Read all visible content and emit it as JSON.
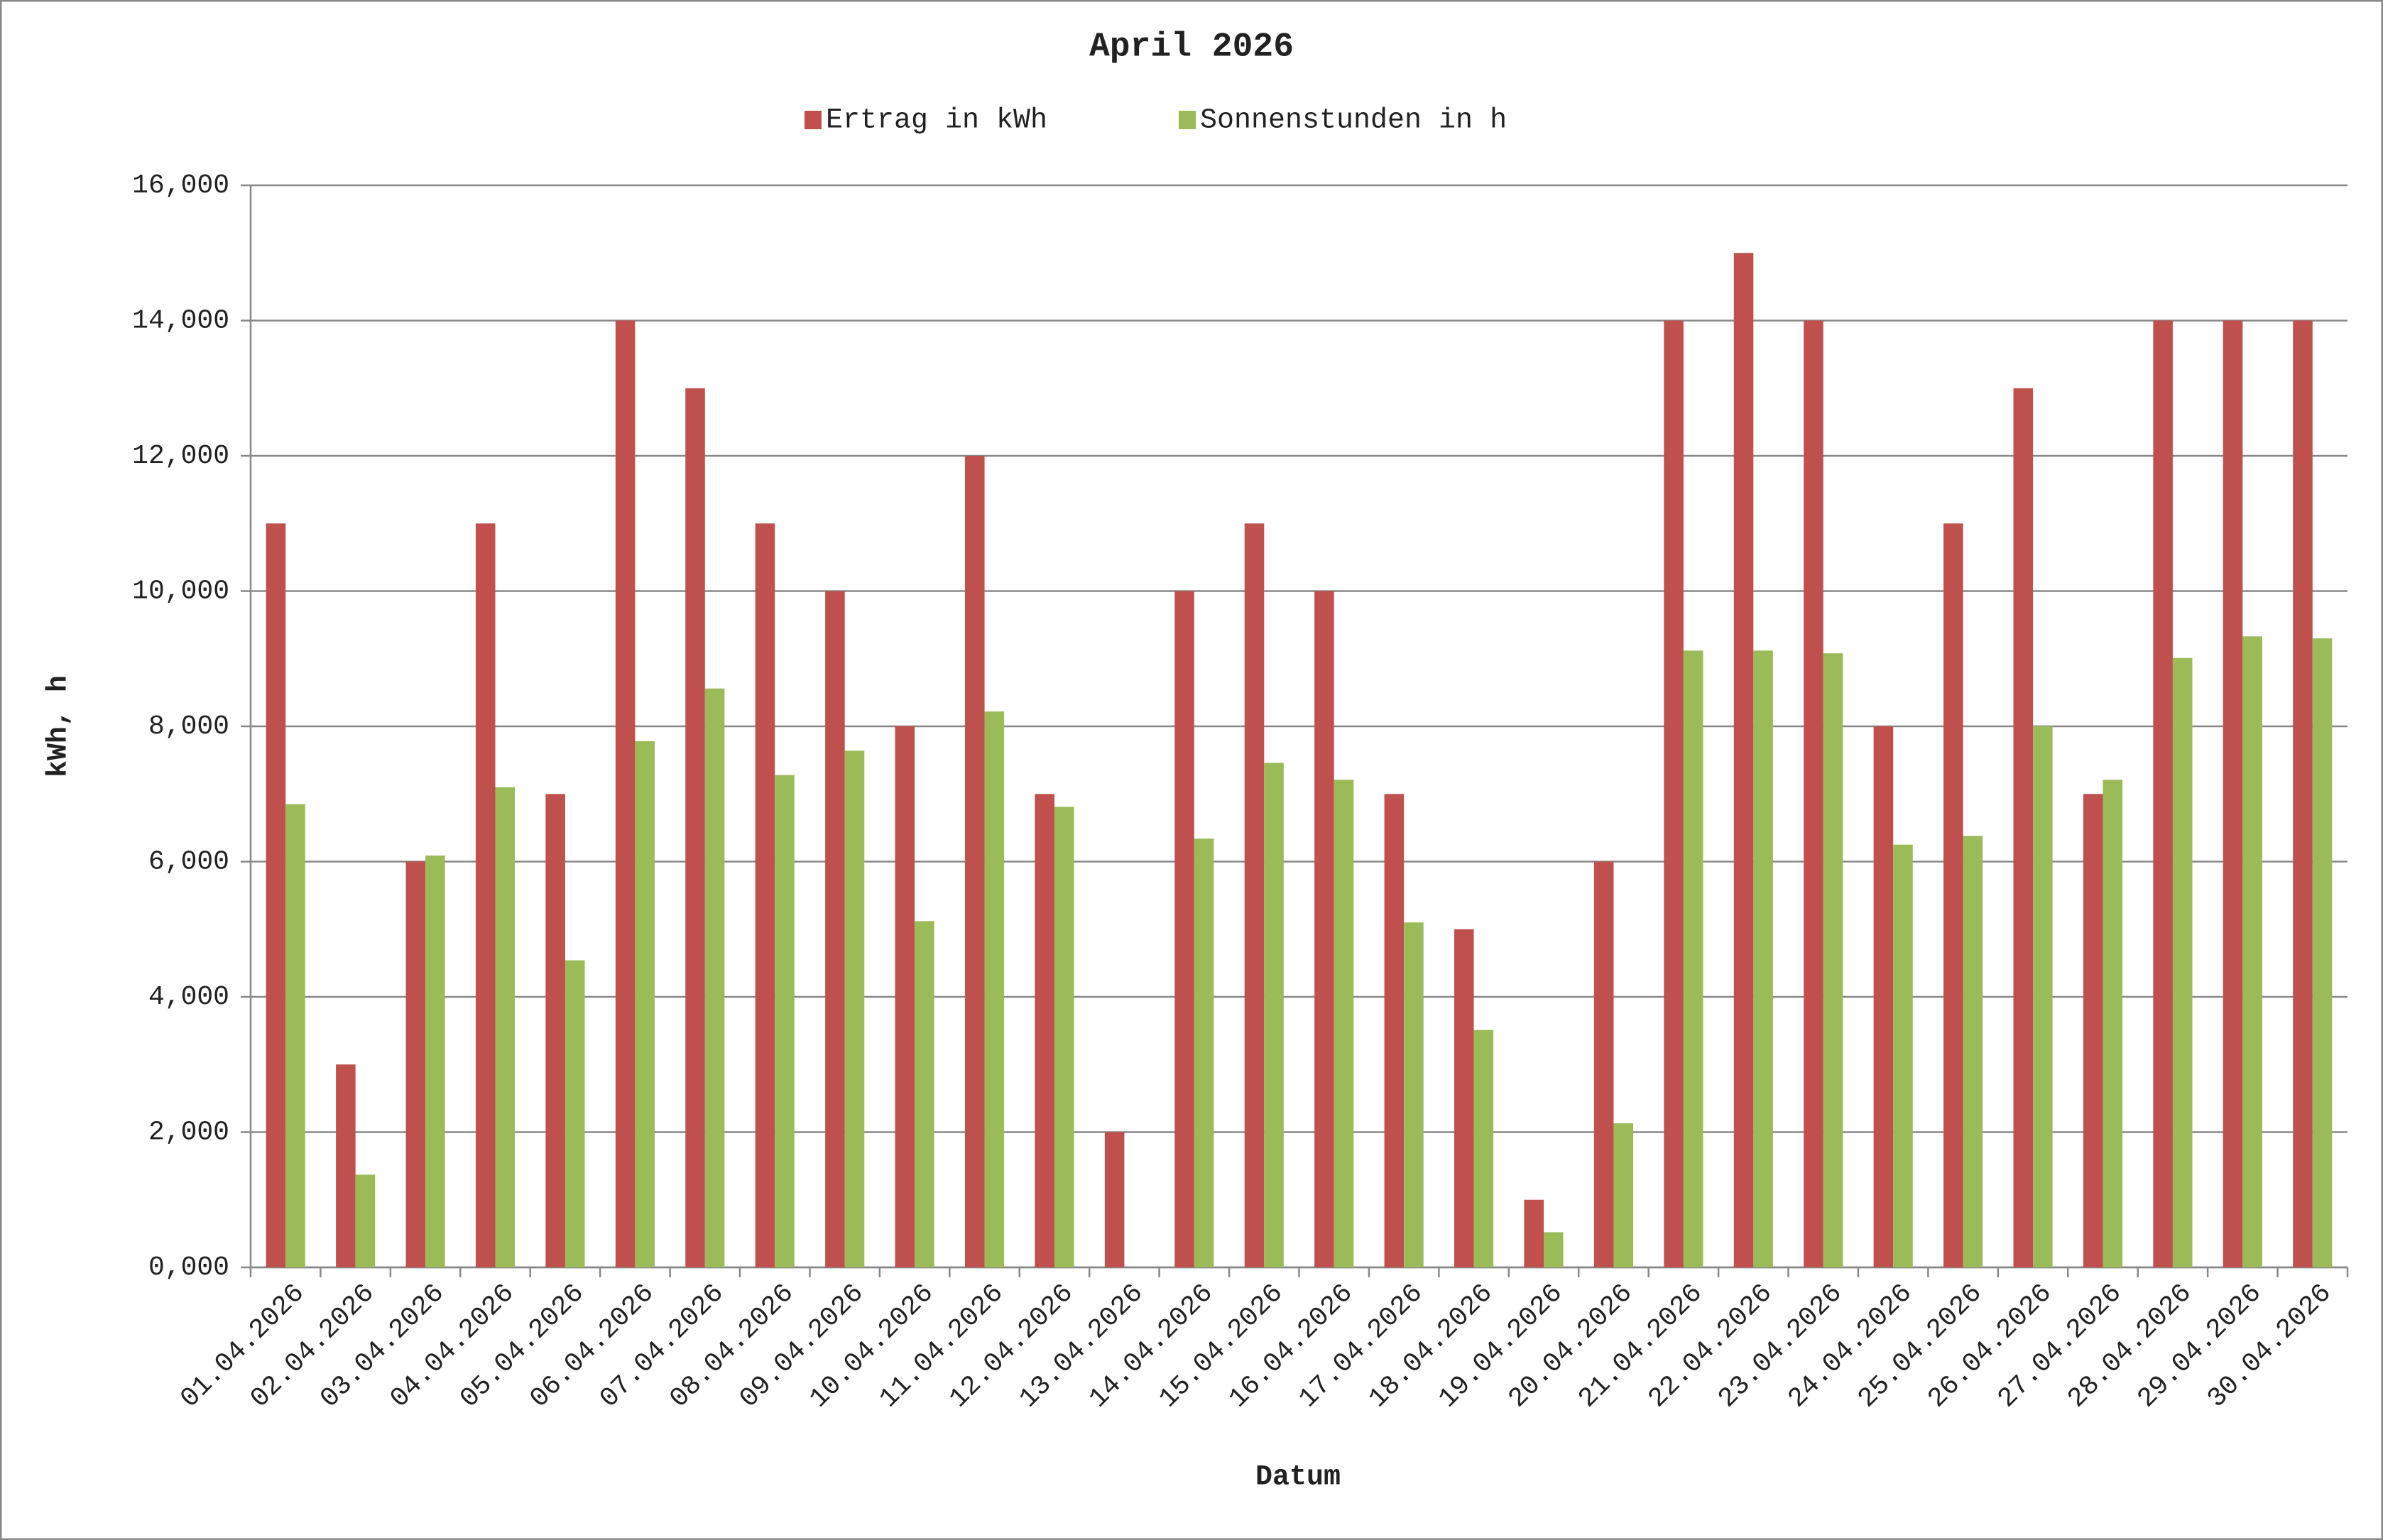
{
  "chart_data": {
    "type": "bar",
    "title": "April 2026",
    "x_label": "Datum",
    "y_label": "kWh, h",
    "categories": [
      "01.04.2026",
      "02.04.2026",
      "03.04.2026",
      "04.04.2026",
      "05.04.2026",
      "06.04.2026",
      "07.04.2026",
      "08.04.2026",
      "09.04.2026",
      "10.04.2026",
      "11.04.2026",
      "12.04.2026",
      "13.04.2026",
      "14.04.2026",
      "15.04.2026",
      "16.04.2026",
      "17.04.2026",
      "18.04.2026",
      "19.04.2026",
      "20.04.2026",
      "21.04.2026",
      "22.04.2026",
      "23.04.2026",
      "24.04.2026",
      "25.04.2026",
      "26.04.2026",
      "27.04.2026",
      "28.04.2026",
      "29.04.2026",
      "30.04.2026"
    ],
    "series": [
      {
        "name": "Ertrag in kWh",
        "color": "#c0504d",
        "values": [
          11,
          3,
          6,
          11,
          7,
          14,
          13,
          11,
          10,
          8,
          12,
          7,
          2,
          10,
          11,
          10,
          7,
          5,
          1,
          6,
          14,
          15,
          14,
          8,
          11,
          13,
          7,
          14,
          14,
          14
        ]
      },
      {
        "name": "Sonnenstunden in h",
        "color": "#9bbb59",
        "values": [
          6.85,
          1.37,
          6.09,
          7.1,
          4.54,
          7.78,
          8.56,
          7.28,
          7.64,
          5.12,
          8.22,
          6.81,
          0,
          6.34,
          7.46,
          7.21,
          5.1,
          3.51,
          0.52,
          2.13,
          9.12,
          9.12,
          9.08,
          6.25,
          6.38,
          8.0,
          7.21,
          9.01,
          9.33,
          9.3
        ]
      }
    ],
    "ylim": [
      0,
      16
    ],
    "yticks": [
      {
        "value": 0,
        "label": "0,000"
      },
      {
        "value": 2,
        "label": "2,000"
      },
      {
        "value": 4,
        "label": "4,000"
      },
      {
        "value": 6,
        "label": "6,000"
      },
      {
        "value": 8,
        "label": "8,000"
      },
      {
        "value": 10,
        "label": "10,000"
      },
      {
        "value": 12,
        "label": "12,000"
      },
      {
        "value": 14,
        "label": "14,000"
      },
      {
        "value": 16,
        "label": "16,000"
      }
    ],
    "grid": true,
    "legend": "top"
  }
}
